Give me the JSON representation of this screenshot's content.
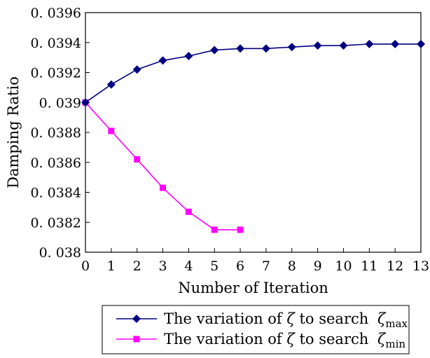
{
  "chart_data": {
    "type": "line",
    "title": "",
    "xlabel": "Number of Iteration",
    "ylabel": "Damping Ratio",
    "xlim": [
      0,
      13
    ],
    "ylim": [
      0.038,
      0.0396
    ],
    "x_ticks": [
      "0",
      "1",
      "2",
      "3",
      "4",
      "5",
      "6",
      "7",
      "8",
      "9",
      "10",
      "11",
      "12",
      "13"
    ],
    "y_ticks": [
      "0. 038",
      "0. 0382",
      "0. 0384",
      "0. 0386",
      "0. 0388",
      "0. 039",
      "0. 0392",
      "0. 0394",
      "0. 0396"
    ],
    "grid": false,
    "legend_position": "bottom",
    "series": [
      {
        "legend_prefix": "The variation of ",
        "legend_var": "ζ",
        "legend_mid": " to search ",
        "legend_sym": "ζ",
        "legend_sub": "max",
        "color": "#000080",
        "marker": "diamond",
        "x": [
          0,
          1,
          2,
          3,
          4,
          5,
          6,
          7,
          8,
          9,
          10,
          11,
          12,
          13
        ],
        "values": [
          0.039,
          0.03912,
          0.03922,
          0.03928,
          0.03931,
          0.03935,
          0.03936,
          0.03936,
          0.03937,
          0.03938,
          0.03938,
          0.03939,
          0.03939,
          0.03939
        ]
      },
      {
        "legend_prefix": "The variation of ",
        "legend_var": "ζ",
        "legend_mid": " to search ",
        "legend_sym": "ζ",
        "legend_sub": "min",
        "color": "#ff00ff",
        "marker": "square",
        "x": [
          0,
          1,
          2,
          3,
          4,
          5,
          6
        ],
        "values": [
          0.039,
          0.03881,
          0.03862,
          0.03843,
          0.03827,
          0.03815,
          0.03815
        ]
      }
    ]
  }
}
